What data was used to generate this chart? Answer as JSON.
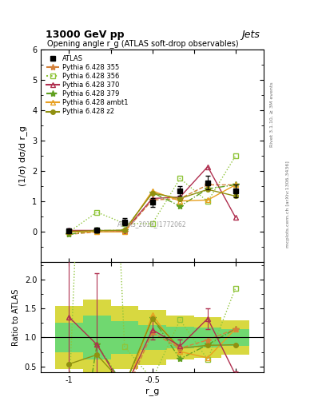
{
  "title_top": "13000 GeV pp",
  "title_right": "Jets",
  "plot_title": "Opening angle r_g (ATLAS soft-drop observables)",
  "xlabel": "r_g",
  "ylabel_main": "(1/σ) dσ/d r_g",
  "ylabel_ratio": "Ratio to ATLAS",
  "watermark": "ATLAS_2019_I1772062",
  "right_label": "Rivet 3.1.10, ≥ 3M events",
  "arxiv_label": "mcplots.cern.ch [arXiv:1306.3436]",
  "x_points": [
    -1.25,
    -1.083,
    -0.917,
    -0.75,
    -0.583,
    -0.417,
    -0.25
  ],
  "atlas_y": [
    0.037,
    0.057,
    0.333,
    0.97,
    1.35,
    1.62,
    1.35
  ],
  "atlas_yerr": [
    0.08,
    0.08,
    0.12,
    0.15,
    0.17,
    0.22,
    0.22
  ],
  "p355_y": [
    -0.08,
    0.0,
    0.0,
    1.05,
    1.1,
    1.55,
    1.55
  ],
  "p355_color": "#d4813a",
  "p355_ls": "--",
  "p355_marker": "*",
  "p355_label": "Pythia 6.428 355",
  "p356_y": [
    0.0,
    0.65,
    0.28,
    0.27,
    1.76,
    1.0,
    2.5
  ],
  "p356_color": "#8fc43a",
  "p356_ls": ":",
  "p356_marker": "s",
  "p356_label": "Pythia 6.428 356",
  "p370_y": [
    0.05,
    0.05,
    0.03,
    1.1,
    1.15,
    2.15,
    0.48
  ],
  "p370_color": "#b03050",
  "p370_ls": "-",
  "p370_marker": "^",
  "p370_label": "Pythia 6.428 370",
  "p379_y": [
    -0.08,
    0.05,
    0.05,
    1.3,
    0.85,
    1.42,
    1.55
  ],
  "p379_color": "#60a020",
  "p379_ls": "-.",
  "p379_marker": "*",
  "p379_label": "Pythia 6.428 379",
  "pambt1_y": [
    0.0,
    0.0,
    0.0,
    1.35,
    1.02,
    1.05,
    1.55
  ],
  "pambt1_color": "#e8a020",
  "pambt1_ls": "-",
  "pambt1_marker": "^",
  "pambt1_label": "Pythia 6.428 ambt1",
  "pz2_y": [
    0.02,
    0.04,
    0.06,
    1.28,
    1.1,
    1.4,
    1.18
  ],
  "pz2_color": "#909010",
  "pz2_ls": "-",
  "pz2_marker": "o",
  "pz2_label": "Pythia 6.428 z2",
  "ylim_main": [
    -1.0,
    6.0
  ],
  "ylim_ratio": [
    0.4,
    2.3
  ],
  "xlim": [
    -1.42,
    -0.08
  ],
  "band_inner_color": "#70d870",
  "band_outer_color": "#d8d840",
  "band_x_edges": [
    -1.333,
    -1.167,
    -1.0,
    -0.833,
    -0.667,
    -0.5,
    -0.333,
    -0.167
  ],
  "band_inner_lo": [
    0.75,
    0.62,
    0.72,
    0.78,
    0.82,
    0.83,
    0.86,
    0.88
  ],
  "band_inner_hi": [
    1.25,
    1.38,
    1.28,
    1.22,
    1.18,
    1.17,
    1.14,
    1.12
  ],
  "band_outer_lo": [
    0.45,
    0.35,
    0.45,
    0.52,
    0.62,
    0.65,
    0.7,
    0.72
  ],
  "band_outer_hi": [
    1.55,
    1.65,
    1.55,
    1.48,
    1.38,
    1.35,
    1.3,
    1.28
  ]
}
